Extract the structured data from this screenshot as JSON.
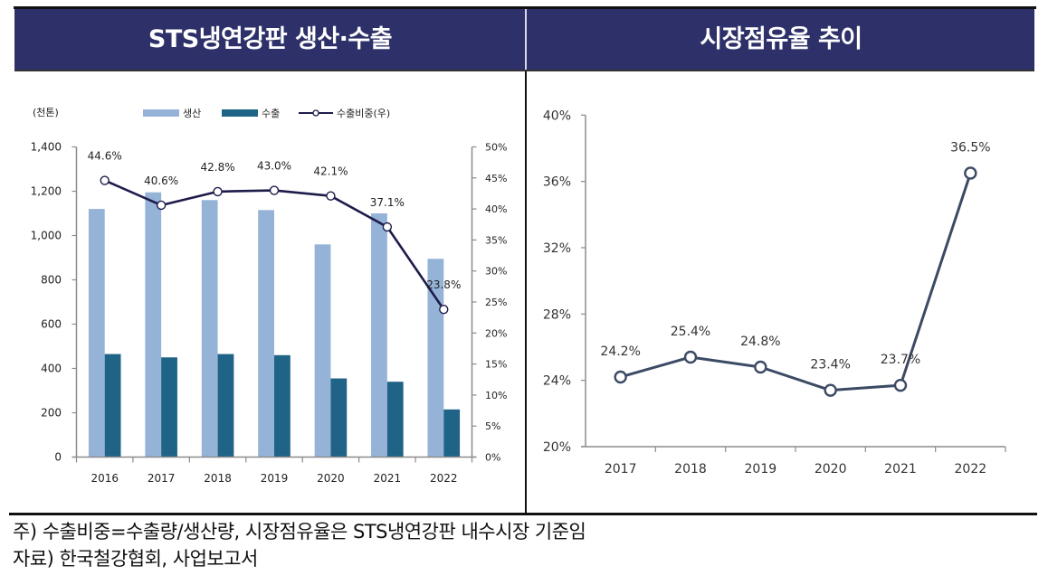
{
  "panels": {
    "left": {
      "title": "STS냉연강판 생산·수출"
    },
    "right": {
      "title": "시장점유율 추이"
    }
  },
  "footer": {
    "note": "주) 수출비중=수출량/생산량, 시장점유율은 STS냉연강판 내수시장 기준임",
    "source": "자료) 한국철강협회, 사업보고서"
  },
  "chart_data": [
    {
      "type": "bar",
      "title": "STS냉연강판 생산·수출",
      "unit_label": "(천톤)",
      "xlabel": "",
      "ylabel": "(천톤)",
      "categories": [
        "2016",
        "2017",
        "2018",
        "2019",
        "2020",
        "2021",
        "2022"
      ],
      "series": [
        {
          "name": "생산",
          "type": "bar",
          "axis": "left",
          "color": "#95b3d7",
          "values": [
            1120,
            1195,
            1160,
            1115,
            960,
            1100,
            895
          ]
        },
        {
          "name": "수출",
          "type": "bar",
          "axis": "left",
          "color": "#1f6387",
          "values": [
            465,
            450,
            465,
            460,
            355,
            340,
            215
          ]
        },
        {
          "name": "수출비중(우)",
          "type": "line",
          "axis": "right",
          "color": "#1e1b4b",
          "values": [
            44.6,
            40.6,
            42.8,
            43.0,
            42.1,
            37.1,
            23.8
          ],
          "value_labels": [
            "44.6%",
            "40.6%",
            "42.8%",
            "43.0%",
            "42.1%",
            "37.1%",
            "23.8%"
          ]
        }
      ],
      "y_left": {
        "min": 0,
        "max": 1400,
        "step": 200,
        "tick_labels": [
          "0",
          "200",
          "400",
          "600",
          "800",
          "1,000",
          "1,200",
          "1,400"
        ]
      },
      "y_right": {
        "min": 0,
        "max": 50,
        "step": 5,
        "tick_labels": [
          "0%",
          "5%",
          "10%",
          "15%",
          "20%",
          "25%",
          "30%",
          "35%",
          "40%",
          "45%",
          "50%"
        ]
      },
      "grid": false,
      "legend": "top"
    },
    {
      "type": "line",
      "title": "시장점유율 추이",
      "xlabel": "",
      "ylabel": "",
      "categories": [
        "2017",
        "2018",
        "2019",
        "2020",
        "2021",
        "2022"
      ],
      "series": [
        {
          "name": "시장점유율",
          "color": "#3c4a64",
          "values": [
            24.2,
            25.4,
            24.8,
            23.4,
            23.7,
            36.5
          ],
          "value_labels": [
            "24.2%",
            "25.4%",
            "24.8%",
            "23.4%",
            "23.7%",
            "36.5%"
          ]
        }
      ],
      "ylim": [
        20,
        40
      ],
      "y_step": 4,
      "y_tick_labels": [
        "20%",
        "24%",
        "28%",
        "32%",
        "36%",
        "40%"
      ],
      "grid": false,
      "legend": "none"
    }
  ]
}
